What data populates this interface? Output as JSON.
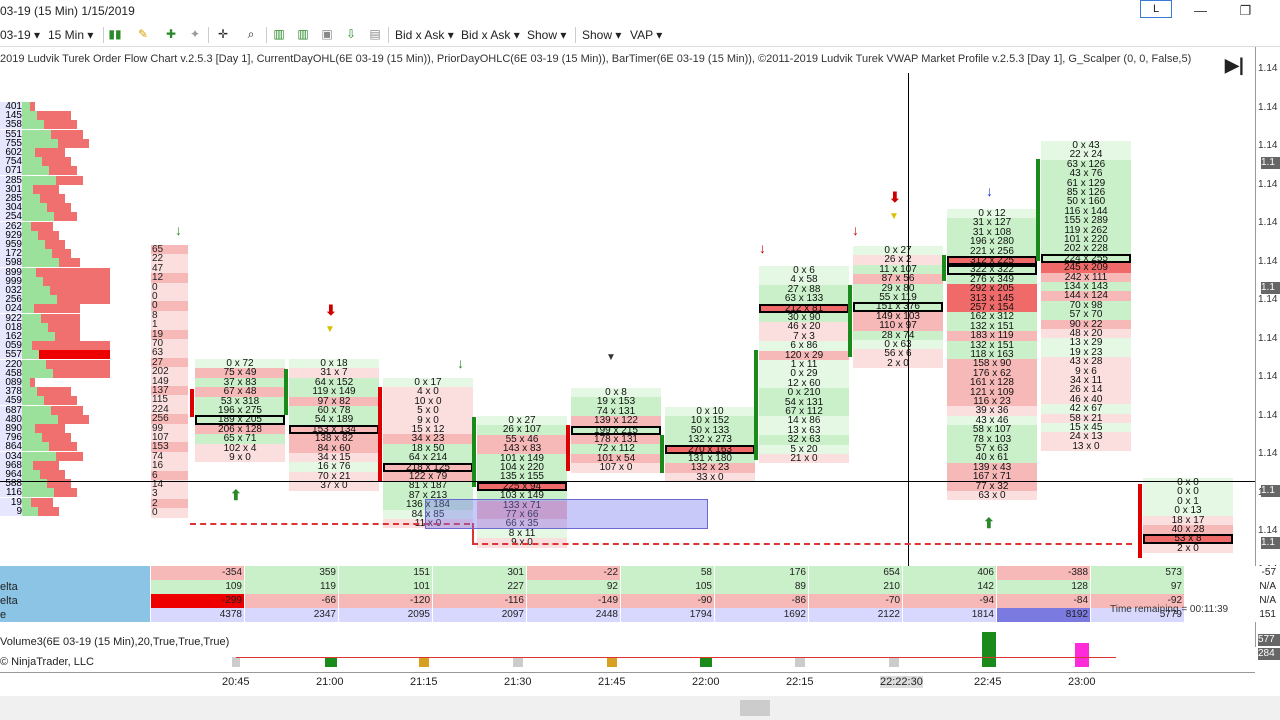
{
  "window": {
    "title": "03-19 (15 Min)  1/15/2019",
    "lbtn": "L",
    "min": "—",
    "max": "❐"
  },
  "toolbar": {
    "instrument": "03-19 ▾",
    "interval": "15 Min ▾",
    "bidask1": "Bid x Ask ▾",
    "bidask2": "Bid x Ask ▾",
    "show1": "Show ▾",
    "show2": "Show ▾",
    "vap": "VAP ▾"
  },
  "chart": {
    "header": "2019 Ludvik Turek Order Flow Chart v.2.5.3 [Day 1], CurrentDayOHL(6E 03-19 (15 Min)), PriorDayOHLC(6E 03-19 (15 Min)), BarTimer(6E 03-19 (15 Min)), ©2011-2019 Ludvik Turek VWAP Market Profile v.2.5.3 [Day 1], G_Scalper (0, 0, False,5)",
    "play_icon": "▶|",
    "vp_labels": [
      "401",
      "145",
      "358",
      "551",
      "755",
      "602",
      "754",
      "071",
      "285",
      "301",
      "285",
      "304",
      "254",
      "262",
      "929",
      "959",
      "172",
      "598",
      "899",
      "999",
      "032",
      "256",
      "024",
      "922",
      "018",
      "162",
      "059",
      "557",
      "220",
      "458",
      "089",
      "378",
      "459",
      "687",
      "480",
      "890",
      "796",
      "864",
      "034",
      "968",
      "964",
      "588",
      "116",
      "19",
      "9"
    ],
    "profile_counts": [
      "65",
      "22",
      "47",
      "12",
      "0",
      "0",
      "0",
      "8",
      "1",
      "19",
      "70",
      "63",
      "27",
      "202",
      "149",
      "137",
      "115",
      "224",
      "256",
      "99",
      "107",
      "153",
      "74",
      "16",
      "6",
      "14",
      "3",
      "2",
      "0"
    ],
    "bars": [
      {
        "name": "bar-2045",
        "cells": [
          {
            "t": "0 x 72",
            "c": "gl"
          },
          {
            "t": "75 x 49",
            "c": "r"
          },
          {
            "t": "37 x 83",
            "c": "g"
          },
          {
            "t": "67 x 48",
            "c": "r"
          },
          {
            "t": "53 x 318",
            "c": "g"
          },
          {
            "t": "196 x 275",
            "c": "g"
          },
          {
            "t": "189 x 205",
            "c": "g"
          },
          {
            "t": "206 x 128",
            "c": "r"
          },
          {
            "t": "65 x 71",
            "c": "g"
          },
          {
            "t": "102 x 4",
            "c": "rl"
          },
          {
            "t": "9 x 0",
            "c": "rl"
          }
        ]
      },
      {
        "name": "bar-2100",
        "cells": [
          {
            "t": "0 x 18",
            "c": "gl"
          },
          {
            "t": "31 x 7",
            "c": "rl"
          },
          {
            "t": "64 x 152",
            "c": "g"
          },
          {
            "t": "119 x 149",
            "c": "g"
          },
          {
            "t": "97 x 82",
            "c": "r"
          },
          {
            "t": "60 x 78",
            "c": "g"
          },
          {
            "t": "54 x 189",
            "c": "g"
          },
          {
            "t": "153 x 134",
            "c": "r"
          },
          {
            "t": "138 x 82",
            "c": "r"
          },
          {
            "t": "84 x 60",
            "c": "r"
          },
          {
            "t": "34 x 15",
            "c": "rl"
          },
          {
            "t": "16 x 76",
            "c": "gl"
          },
          {
            "t": "70 x 21",
            "c": "rl"
          },
          {
            "t": "37 x 0",
            "c": "rl"
          }
        ]
      },
      {
        "name": "bar-2115",
        "cells": [
          {
            "t": "0 x 17",
            "c": "gl"
          },
          {
            "t": "4 x 0",
            "c": "rl"
          },
          {
            "t": "10 x 0",
            "c": "rl"
          },
          {
            "t": "5 x 0",
            "c": "rl"
          },
          {
            "t": "9 x 0",
            "c": "rl"
          },
          {
            "t": "15 x 12",
            "c": "rl"
          },
          {
            "t": "34 x 23",
            "c": "r"
          },
          {
            "t": "18 x 50",
            "c": "g"
          },
          {
            "t": "64 x 214",
            "c": "g"
          },
          {
            "t": "218 x 125",
            "c": "r"
          },
          {
            "t": "122 x 79",
            "c": "r"
          },
          {
            "t": "81 x 187",
            "c": "g"
          },
          {
            "t": "87 x 213",
            "c": "g"
          },
          {
            "t": "136 x 184",
            "c": "g"
          },
          {
            "t": "84 x 85",
            "c": "gl"
          },
          {
            "t": "11 x 0",
            "c": "rl"
          }
        ]
      },
      {
        "name": "bar-2130",
        "cells": [
          {
            "t": "0 x 27",
            "c": "gl"
          },
          {
            "t": "26 x 107",
            "c": "g"
          },
          {
            "t": "55 x 46",
            "c": "r"
          },
          {
            "t": "143 x 83",
            "c": "r"
          },
          {
            "t": "101 x 149",
            "c": "g"
          },
          {
            "t": "104 x 220",
            "c": "g"
          },
          {
            "t": "135 x 155",
            "c": "g"
          },
          {
            "t": "225 x 94",
            "c": "rs"
          },
          {
            "t": "103 x 149",
            "c": "g"
          },
          {
            "t": "133 x 71",
            "c": "r"
          },
          {
            "t": "77 x 66",
            "c": "r"
          },
          {
            "t": "66 x 35",
            "c": "rl"
          },
          {
            "t": "8 x 11",
            "c": "gl"
          },
          {
            "t": "9 x 0",
            "c": "rl"
          }
        ]
      },
      {
        "name": "bar-2145",
        "cells": [
          {
            "t": "0 x 8",
            "c": "gl"
          },
          {
            "t": "19 x 153",
            "c": "g"
          },
          {
            "t": "74 x 131",
            "c": "g"
          },
          {
            "t": "139 x 122",
            "c": "r"
          },
          {
            "t": "199 x 215",
            "c": "g"
          },
          {
            "t": "178 x 131",
            "c": "r"
          },
          {
            "t": "72 x 112",
            "c": "g"
          },
          {
            "t": "101 x 54",
            "c": "r"
          },
          {
            "t": "107 x 0",
            "c": "rl"
          }
        ]
      },
      {
        "name": "bar-2200",
        "cells": [
          {
            "t": "0 x 10",
            "c": "gl"
          },
          {
            "t": "10 x 152",
            "c": "g"
          },
          {
            "t": "50 x 133",
            "c": "g"
          },
          {
            "t": "132 x 273",
            "c": "g"
          },
          {
            "t": "270 x 163",
            "c": "rs"
          },
          {
            "t": "131 x 180",
            "c": "g"
          },
          {
            "t": "132 x 23",
            "c": "r"
          },
          {
            "t": "33 x 0",
            "c": "rl"
          }
        ]
      },
      {
        "name": "bar-2215",
        "cells": [
          {
            "t": "0 x 6",
            "c": "gl"
          },
          {
            "t": "4 x 58",
            "c": "gl"
          },
          {
            "t": "27 x 88",
            "c": "g"
          },
          {
            "t": "63 x 133",
            "c": "g"
          },
          {
            "t": "212 x 81",
            "c": "rs"
          },
          {
            "t": "30 x 90",
            "c": "g"
          },
          {
            "t": "46 x 20",
            "c": "rl"
          },
          {
            "t": "7 x 3",
            "c": "rl"
          },
          {
            "t": "6 x 86",
            "c": "gl"
          },
          {
            "t": "120 x 29",
            "c": "r"
          },
          {
            "t": "1 x 11",
            "c": "gl"
          },
          {
            "t": "0 x 29",
            "c": "gl"
          },
          {
            "t": "12 x 60",
            "c": "gl"
          },
          {
            "t": "0 x 210",
            "c": "g"
          },
          {
            "t": "54 x 131",
            "c": "g"
          },
          {
            "t": "67 x 112",
            "c": "g"
          },
          {
            "t": "14 x 86",
            "c": "gl"
          },
          {
            "t": "13 x 63",
            "c": "gl"
          },
          {
            "t": "32 x 63",
            "c": "g"
          },
          {
            "t": "5 x 20",
            "c": "gl"
          },
          {
            "t": "21 x 0",
            "c": "rl"
          }
        ]
      },
      {
        "name": "bar-2230",
        "cells": [
          {
            "t": "0 x 27",
            "c": "gl"
          },
          {
            "t": "26 x 2",
            "c": "rl"
          },
          {
            "t": "11 x 107",
            "c": "g"
          },
          {
            "t": "87 x 56",
            "c": "r"
          },
          {
            "t": "29 x 80",
            "c": "g"
          },
          {
            "t": "55 x 119",
            "c": "g"
          },
          {
            "t": "151 x 376",
            "c": "g"
          },
          {
            "t": "149 x 103",
            "c": "r"
          },
          {
            "t": "110 x 97",
            "c": "r"
          },
          {
            "t": "28 x 74",
            "c": "g"
          },
          {
            "t": "0 x 63",
            "c": "gl"
          },
          {
            "t": "56 x 6",
            "c": "rl"
          },
          {
            "t": "2 x 0",
            "c": "rl"
          }
        ]
      },
      {
        "name": "bar-2245",
        "cells": [
          {
            "t": "0 x 12",
            "c": "gl"
          },
          {
            "t": "31 x 127",
            "c": "g"
          },
          {
            "t": "31 x 108",
            "c": "g"
          },
          {
            "t": "196 x 280",
            "c": "g"
          },
          {
            "t": "221 x 256",
            "c": "g"
          },
          {
            "t": "312 x 225",
            "c": "rs"
          },
          {
            "t": "322 x 322",
            "c": "g"
          },
          {
            "t": "276 x 349",
            "c": "g"
          },
          {
            "t": "292 x 205",
            "c": "rs"
          },
          {
            "t": "313 x 145",
            "c": "rs"
          },
          {
            "t": "257 x 154",
            "c": "rs"
          },
          {
            "t": "162 x 312",
            "c": "g"
          },
          {
            "t": "132 x 151",
            "c": "g"
          },
          {
            "t": "183 x 119",
            "c": "r"
          },
          {
            "t": "132 x 151",
            "c": "g"
          },
          {
            "t": "118 x 163",
            "c": "g"
          },
          {
            "t": "158 x 90",
            "c": "r"
          },
          {
            "t": "176 x 62",
            "c": "r"
          },
          {
            "t": "161 x 128",
            "c": "r"
          },
          {
            "t": "121 x 109",
            "c": "r"
          },
          {
            "t": "116 x 23",
            "c": "r"
          },
          {
            "t": "39 x 36",
            "c": "rl"
          },
          {
            "t": "43 x 46",
            "c": "gl"
          },
          {
            "t": "58 x 107",
            "c": "g"
          },
          {
            "t": "78 x 103",
            "c": "g"
          },
          {
            "t": "57 x 63",
            "c": "g"
          },
          {
            "t": "40 x 61",
            "c": "g"
          },
          {
            "t": "139 x 43",
            "c": "r"
          },
          {
            "t": "167 x 71",
            "c": "r"
          },
          {
            "t": "77 x 32",
            "c": "r"
          },
          {
            "t": "63 x 0",
            "c": "rl"
          }
        ]
      },
      {
        "name": "bar-2300",
        "cells": [
          {
            "t": "0 x 43",
            "c": "gl"
          },
          {
            "t": "22 x 24",
            "c": "gl"
          },
          {
            "t": "63 x 126",
            "c": "g"
          },
          {
            "t": "43 x 76",
            "c": "g"
          },
          {
            "t": "61 x 129",
            "c": "g"
          },
          {
            "t": "85 x 126",
            "c": "g"
          },
          {
            "t": "50 x 160",
            "c": "g"
          },
          {
            "t": "116 x 144",
            "c": "g"
          },
          {
            "t": "155 x 289",
            "c": "g"
          },
          {
            "t": "119 x 262",
            "c": "g"
          },
          {
            "t": "101 x 220",
            "c": "g"
          },
          {
            "t": "202 x 228",
            "c": "g"
          },
          {
            "t": "224 x 255",
            "c": "g"
          },
          {
            "t": "245 x 209",
            "c": "rs"
          },
          {
            "t": "242 x 111",
            "c": "r"
          },
          {
            "t": "134 x 143",
            "c": "g"
          },
          {
            "t": "144 x 124",
            "c": "r"
          },
          {
            "t": "70 x 98",
            "c": "g"
          },
          {
            "t": "57 x 70",
            "c": "g"
          },
          {
            "t": "90 x 22",
            "c": "r"
          },
          {
            "t": "48 x 20",
            "c": "rl"
          },
          {
            "t": "13 x 29",
            "c": "gl"
          },
          {
            "t": "19 x 23",
            "c": "gl"
          },
          {
            "t": "43 x 28",
            "c": "rl"
          },
          {
            "t": "9 x 6",
            "c": "rl"
          },
          {
            "t": "34 x 11",
            "c": "rl"
          },
          {
            "t": "26 x 14",
            "c": "rl"
          },
          {
            "t": "46 x 40",
            "c": "rl"
          },
          {
            "t": "42 x 67",
            "c": "gl"
          },
          {
            "t": "58 x 21",
            "c": "rl"
          },
          {
            "t": "15 x 45",
            "c": "gl"
          },
          {
            "t": "24 x 13",
            "c": "rl"
          },
          {
            "t": "13 x 0",
            "c": "rl"
          }
        ]
      },
      {
        "name": "bar-2315",
        "cells": [
          {
            "t": "0 x 0",
            "c": "gl"
          },
          {
            "t": "0 x 0",
            "c": "gl"
          },
          {
            "t": "0 x 1",
            "c": "gl"
          },
          {
            "t": "0 x 13",
            "c": "gl"
          },
          {
            "t": "18 x 17",
            "c": "rl"
          },
          {
            "t": "40 x 28",
            "c": "r"
          },
          {
            "t": "53 x 8",
            "c": "rs"
          },
          {
            "t": "2 x 0",
            "c": "rl"
          }
        ]
      }
    ],
    "y_ticks": [
      "1.14",
      "1.14",
      "1.14",
      "1.14",
      "1.14",
      "1.14",
      "1.14",
      "1.14",
      "1.14",
      "1.14",
      "1.14",
      "1.14",
      "1.14",
      "1.14",
      "1.14"
    ],
    "y_tags": [
      "1.1",
      "1.1",
      "1.1",
      "1.1"
    ]
  },
  "stats": {
    "rows": [
      {
        "label": "",
        "values": [
          "-354",
          "359",
          "151",
          "301",
          "-22",
          "58",
          "176",
          "654",
          "406",
          "-388",
          "573",
          "-57"
        ]
      },
      {
        "label": "elta",
        "values": [
          "109",
          "119",
          "101",
          "227",
          "92",
          "105",
          "89",
          "210",
          "142",
          "128",
          "97",
          "N/A"
        ]
      },
      {
        "label": "elta",
        "values": [
          "-299",
          "-66",
          "-120",
          "-116",
          "-149",
          "-90",
          "-86",
          "-70",
          "-94",
          "-84",
          "-92",
          "N/A"
        ]
      },
      {
        "label": "e",
        "values": [
          "4378",
          "2347",
          "2095",
          "2097",
          "2448",
          "1794",
          "1692",
          "2122",
          "1814",
          "8192",
          "5779",
          "151"
        ]
      }
    ],
    "time_remaining": "Time remaining = 00:11:39"
  },
  "volume": {
    "label": "Volume3(6E 03-19 (15 Min),20,True,True,True)",
    "copyright": "© NinjaTrader, LLC",
    "right_tags": [
      "577",
      "284"
    ]
  },
  "time_axis": [
    "20:45",
    "21:00",
    "21:15",
    "21:30",
    "21:45",
    "22:00",
    "22:15",
    "22:22:30",
    "22:45",
    "23:00"
  ]
}
